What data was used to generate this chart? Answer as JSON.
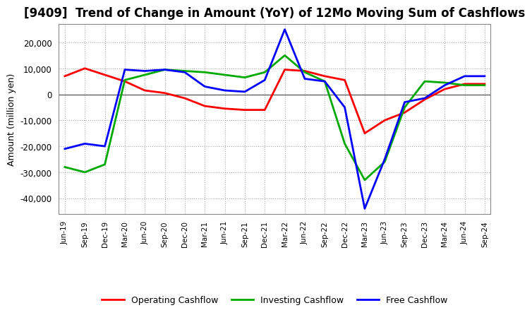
{
  "title": "[9409]  Trend of Change in Amount (YoY) of 12Mo Moving Sum of Cashflows",
  "ylabel": "Amount (million yen)",
  "x_labels": [
    "Jun-19",
    "Sep-19",
    "Dec-19",
    "Mar-20",
    "Jun-20",
    "Sep-20",
    "Dec-20",
    "Mar-21",
    "Jun-21",
    "Sep-21",
    "Dec-21",
    "Mar-22",
    "Jun-22",
    "Sep-22",
    "Dec-22",
    "Mar-23",
    "Jun-23",
    "Sep-23",
    "Dec-23",
    "Mar-24",
    "Jun-24",
    "Sep-24"
  ],
  "operating": [
    7000,
    10000,
    7500,
    5000,
    1500,
    500,
    -1500,
    -4500,
    -5500,
    -6000,
    -6000,
    9500,
    9000,
    7000,
    5500,
    -15000,
    -10000,
    -7000,
    -2000,
    2000,
    4000,
    4000
  ],
  "investing": [
    -28000,
    -30000,
    -27000,
    5500,
    7500,
    9500,
    9000,
    8500,
    7500,
    6500,
    8500,
    15000,
    8500,
    5000,
    -19000,
    -33000,
    -26000,
    -5000,
    5000,
    4500,
    3500,
    3500
  ],
  "free": [
    -21000,
    -19000,
    -20000,
    9500,
    9000,
    9500,
    8500,
    3000,
    1500,
    1000,
    5500,
    25000,
    6000,
    5000,
    -5000,
    -44000,
    -25000,
    -3000,
    -1500,
    3500,
    7000,
    7000
  ],
  "operating_color": "#ff0000",
  "investing_color": "#00aa00",
  "free_color": "#0000ff",
  "ylim": [
    -46000,
    27000
  ],
  "yticks": [
    -40000,
    -30000,
    -20000,
    -10000,
    0,
    10000,
    20000
  ],
  "plot_bg_color": "#ffffff",
  "fig_bg_color": "#ffffff",
  "grid_color": "#aaaaaa",
  "title_fontsize": 12,
  "legend_labels": [
    "Operating Cashflow",
    "Investing Cashflow",
    "Free Cashflow"
  ]
}
